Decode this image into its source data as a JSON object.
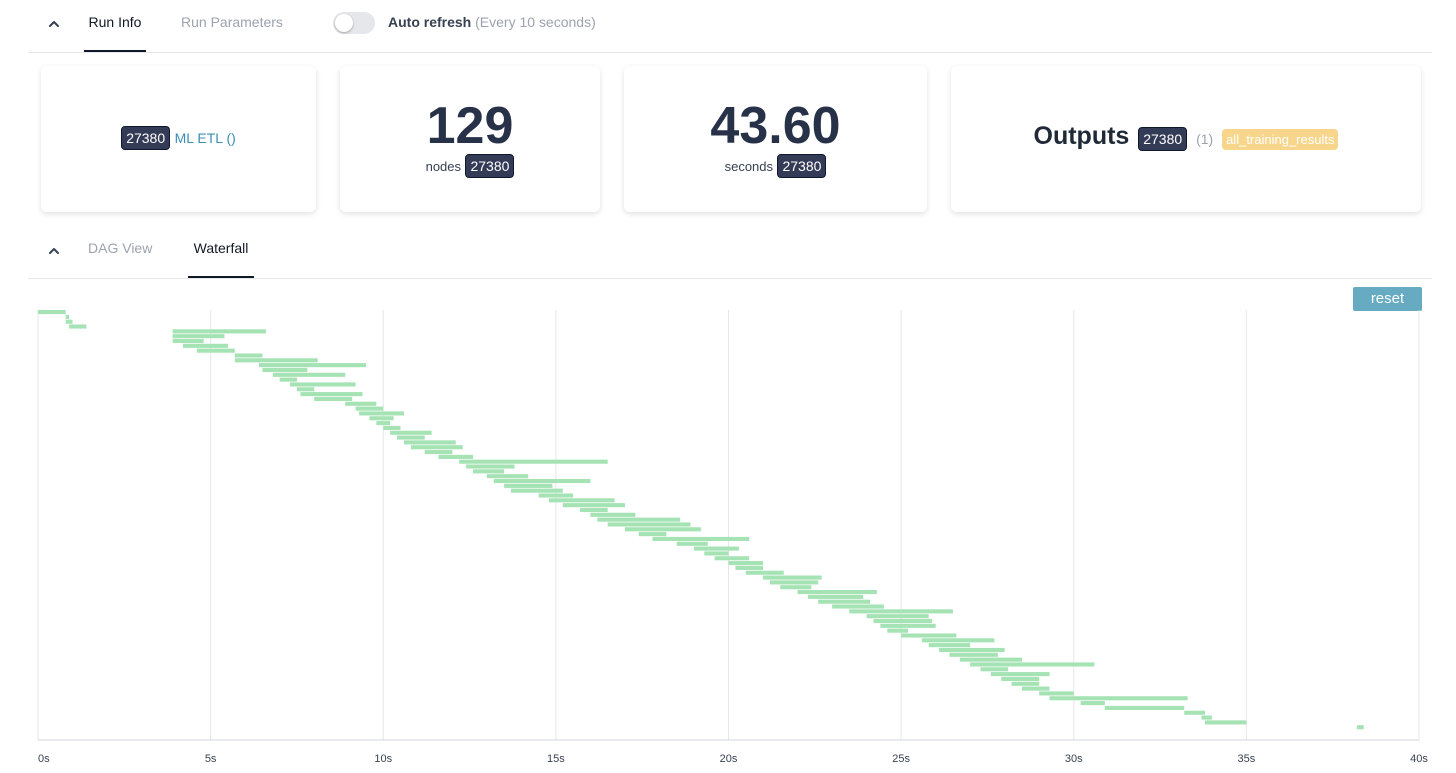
{
  "header": {
    "tabs": [
      {
        "label": "Run Info",
        "active": true
      },
      {
        "label": "Run Parameters",
        "active": false
      }
    ],
    "auto_refresh": {
      "label": "Auto refresh",
      "sub_label": "(Every 10 seconds)",
      "enabled": false
    }
  },
  "cards": {
    "run": {
      "badge": "27380",
      "link": "ML ETL ()"
    },
    "nodes": {
      "value": "129",
      "label": "nodes",
      "badge": "27380"
    },
    "seconds": {
      "value": "43.60",
      "label": "seconds",
      "badge": "27380"
    },
    "outputs": {
      "title": "Outputs",
      "badge": "27380",
      "count": "(1)",
      "chip": "all_training_results"
    }
  },
  "view_tabs": [
    {
      "label": "DAG View",
      "active": false
    },
    {
      "label": "Waterfall",
      "active": true
    }
  ],
  "reset_label": "reset",
  "colors": {
    "bar": "#a5e3b4",
    "badge": "#343b56",
    "link": "#3c8fb8",
    "chip": "#f7d58b",
    "reset": "#66abc2"
  },
  "chart_data": {
    "type": "waterfall",
    "xlim": [
      0,
      40
    ],
    "ticks": [
      "0s",
      "5s",
      "10s",
      "15s",
      "20s",
      "25s",
      "30s",
      "35s",
      "40s"
    ],
    "grid": true,
    "bars_start_end_seconds": [
      [
        0.0,
        0.8
      ],
      [
        0.8,
        0.9
      ],
      [
        0.8,
        1.0
      ],
      [
        0.9,
        1.4
      ],
      [
        3.9,
        6.6
      ],
      [
        3.9,
        5.4
      ],
      [
        3.9,
        4.8
      ],
      [
        4.2,
        5.5
      ],
      [
        4.6,
        5.7
      ],
      [
        5.7,
        6.5
      ],
      [
        5.7,
        8.1
      ],
      [
        6.4,
        9.5
      ],
      [
        6.5,
        7.8
      ],
      [
        6.8,
        8.9
      ],
      [
        7.0,
        7.5
      ],
      [
        7.3,
        9.2
      ],
      [
        7.5,
        8.0
      ],
      [
        7.6,
        9.4
      ],
      [
        8.0,
        9.1
      ],
      [
        8.9,
        9.8
      ],
      [
        9.2,
        10.0
      ],
      [
        9.3,
        10.6
      ],
      [
        9.6,
        10.3
      ],
      [
        9.8,
        10.2
      ],
      [
        10.0,
        10.5
      ],
      [
        10.2,
        11.4
      ],
      [
        10.4,
        11.2
      ],
      [
        10.6,
        12.1
      ],
      [
        10.8,
        12.3
      ],
      [
        11.2,
        12.0
      ],
      [
        11.6,
        12.6
      ],
      [
        12.2,
        16.5
      ],
      [
        12.4,
        13.8
      ],
      [
        12.6,
        13.5
      ],
      [
        13.0,
        14.2
      ],
      [
        13.2,
        16.0
      ],
      [
        13.5,
        14.9
      ],
      [
        13.7,
        15.2
      ],
      [
        14.5,
        15.5
      ],
      [
        14.8,
        16.7
      ],
      [
        15.2,
        17.0
      ],
      [
        15.7,
        16.5
      ],
      [
        16.0,
        17.3
      ],
      [
        16.2,
        18.6
      ],
      [
        16.5,
        18.9
      ],
      [
        17.0,
        19.2
      ],
      [
        17.4,
        18.2
      ],
      [
        17.8,
        20.6
      ],
      [
        18.5,
        19.4
      ],
      [
        19.0,
        20.3
      ],
      [
        19.3,
        20.0
      ],
      [
        19.6,
        20.6
      ],
      [
        20.0,
        21.0
      ],
      [
        20.2,
        21.0
      ],
      [
        20.5,
        21.6
      ],
      [
        21.0,
        22.7
      ],
      [
        21.2,
        22.6
      ],
      [
        21.5,
        22.4
      ],
      [
        22.0,
        24.3
      ],
      [
        22.3,
        23.9
      ],
      [
        22.6,
        24.1
      ],
      [
        23.0,
        24.5
      ],
      [
        23.5,
        26.5
      ],
      [
        24.0,
        25.8
      ],
      [
        24.2,
        25.9
      ],
      [
        24.4,
        26.0
      ],
      [
        24.6,
        25.2
      ],
      [
        25.0,
        26.6
      ],
      [
        25.6,
        27.7
      ],
      [
        25.8,
        27.0
      ],
      [
        26.1,
        28.0
      ],
      [
        26.4,
        27.8
      ],
      [
        26.7,
        28.5
      ],
      [
        27.0,
        30.6
      ],
      [
        27.3,
        28.1
      ],
      [
        27.6,
        29.3
      ],
      [
        27.9,
        29.0
      ],
      [
        28.2,
        29.0
      ],
      [
        28.5,
        29.3
      ],
      [
        29.0,
        30.0
      ],
      [
        29.3,
        33.3
      ],
      [
        30.2,
        30.9
      ],
      [
        30.9,
        33.2
      ],
      [
        33.2,
        33.8
      ],
      [
        33.7,
        34.0
      ],
      [
        33.8,
        35.0
      ],
      [
        38.2,
        38.4
      ]
    ]
  }
}
